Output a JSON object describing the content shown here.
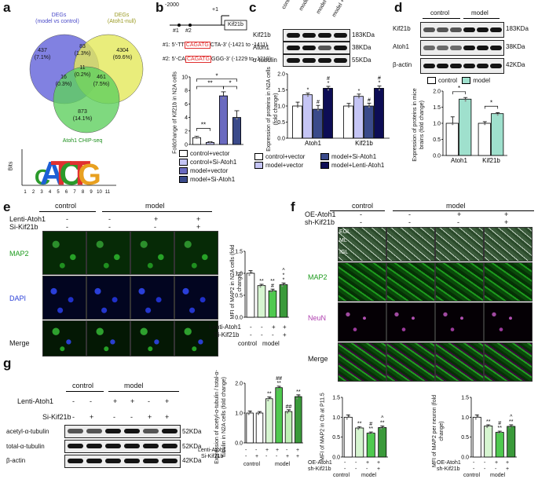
{
  "panel_letters": [
    "a",
    "b",
    "c",
    "d",
    "e",
    "f",
    "g"
  ],
  "colors": {
    "venn_blue": "#6b6bdc",
    "venn_yellow": "#e4e85a",
    "venn_green": "#5fcf5f",
    "white": "#ffffff",
    "lavender": "#c5c5f5",
    "slate": "#3a4a8a",
    "navy": "#0d0d55",
    "teal": "#9fe0cd",
    "light_green": "#d6f5d0",
    "mid_green": "#4fc94f",
    "dark_green": "#3aa83a",
    "red_box": "#e03030"
  },
  "a": {
    "deg1_title": "DEGs",
    "deg1_sub": "(model vs control)",
    "deg2_title": "DEGs",
    "deg2_sub": "(Atoh1-null)",
    "chip_label": "Atoh1 CHIP-seq",
    "regions": [
      {
        "n": "437",
        "p": "(7.1%)"
      },
      {
        "n": "83",
        "p": "(1.3%)"
      },
      {
        "n": "4304",
        "p": "(69.6%)"
      },
      {
        "n": "11",
        "p": "(0.2%)"
      },
      {
        "n": "16",
        "p": "(0.3%)"
      },
      {
        "n": "461",
        "p": "(7.5%)"
      },
      {
        "n": "873",
        "p": "(14.1%)"
      }
    ],
    "logo_ylabel": "Bits",
    "logo_letters": [
      "C",
      "A",
      "T",
      "C",
      "T",
      "G"
    ],
    "logo_ticks": [
      "1",
      "2",
      "3",
      "4",
      "5",
      "6",
      "7",
      "8",
      "9",
      "10",
      "11"
    ]
  },
  "b": {
    "pos_start": "-2000",
    "pos_tss": "+1",
    "site1": "#1",
    "site2": "#2",
    "gene": "Kif21b",
    "seq1_pre": "#1: 5'-TT",
    "seq1_box": "CAGATG",
    "seq1_post": "CTA-3' (-1421 to -1411)",
    "seq2_pre": "#2: 5'-CA",
    "seq2_box": "CAGATG",
    "seq2_post": "GGG-3' (-1229 to -1219)",
    "ylabel": "Foldchange of Kif21b in N2A cells",
    "sig": [
      "**",
      "**",
      "*",
      "*"
    ],
    "legend": [
      "control+vector",
      "control+Si-Atoh1",
      "model+vector",
      "model+Si-Atoh1"
    ]
  },
  "c": {
    "lanes": [
      "control +NC",
      "model +NC",
      "model +Si-Atoh1",
      "model +Lenti-Atoh1"
    ],
    "rows": [
      "Kif21b",
      "Atoh1",
      "α-tubulin"
    ],
    "kda": [
      "183KDa",
      "38KDa",
      "55KDa"
    ],
    "ylabel": "Expression of proteins in N2A cells (fold change)",
    "groups": [
      "Atoh1",
      "Kif21b"
    ],
    "bar_sig": [
      "",
      "*",
      "#",
      "#\n*",
      "",
      "*",
      "#",
      "#\n*"
    ],
    "legend": [
      "control+vector",
      "model+Si-Atoh1",
      "model+vector",
      "model+Lenti-Atoh1"
    ]
  },
  "d": {
    "groups": [
      "control",
      "model"
    ],
    "rows": [
      "Kif21b",
      "Atoh1",
      "β-actin"
    ],
    "kda": [
      "183KDa",
      "38KDa",
      "42KDa"
    ],
    "legend": [
      "control",
      "model"
    ],
    "ylabel": "Expression of proteins in mice brains (fold change)",
    "xcats": [
      "Atoh1",
      "Kif21b"
    ],
    "sig": [
      "*",
      "*"
    ]
  },
  "e": {
    "groups": [
      "control",
      "model"
    ],
    "row1_label": "Lenti-Atoh1",
    "row1": [
      "-",
      "-",
      "+",
      "+"
    ],
    "row2_label": "Si-Kif21b",
    "row2": [
      "-",
      "-",
      "-",
      "+"
    ],
    "rows": [
      "MAP2",
      "DAPI",
      "Merge"
    ],
    "ylabel": "MFI of MAP2 in N2A cells (fold change)",
    "sig": [
      "",
      "**",
      "**\n#",
      "^\n*\n*"
    ],
    "cond_row1_label": "Lenti-Atoh1",
    "cond_row1": [
      "-",
      "-",
      "+",
      "+"
    ],
    "cond_row2_label": "Si-Kif21b",
    "cond_row2": [
      "-",
      "-",
      "-",
      "+"
    ],
    "xgroups": [
      "control",
      "model"
    ]
  },
  "f": {
    "groups": [
      "control",
      "model"
    ],
    "row1_label": "OE-Atoh1",
    "row1": [
      "-",
      "-",
      "+",
      "+"
    ],
    "row2_label": "sh-Kif21b",
    "row2": [
      "-",
      "-",
      "-",
      "+"
    ],
    "rows": [
      "MAP2",
      "NeuN",
      "Merge"
    ],
    "layer_labels": [
      "EGL",
      "ML",
      "IGL"
    ],
    "chart1_ylabel": "MFI of MAP2 in Cb at P11.5",
    "chart2_ylabel": "MFI of MAP2 per neuron (fold change)",
    "sig1": [
      "",
      "**",
      "#\n**",
      "^\n**"
    ],
    "sig2": [
      "",
      "**",
      "#\n**",
      "^\n**"
    ],
    "cond_row1_label": "OE-Atoh1",
    "cond_row1": [
      "-",
      "-",
      "+",
      "+"
    ],
    "cond_row2_label": "sh-Kif21b",
    "cond_row2": [
      "-",
      "-",
      "-",
      "+"
    ],
    "xgroups": [
      "control",
      "model"
    ]
  },
  "g": {
    "groups": [
      "control",
      "model"
    ],
    "row1_label": "Lenti-Atoh1",
    "row1": [
      "-",
      "-",
      "+",
      "+",
      "-",
      "+"
    ],
    "row2_label": "Si-Kif21b",
    "row2": [
      "-",
      "+",
      "-",
      "-",
      "+",
      "+"
    ],
    "rows": [
      "acetyl-α-tubulin",
      "total-α-tubulin",
      "β-actin"
    ],
    "kda": [
      "52KDa",
      "52KDa",
      "42KDa"
    ],
    "ylabel": "Expression of acetyl-α-tubulin / total-α-tubulin in N2A cells (fold change)",
    "sig": [
      "",
      "",
      "**",
      "##\n**",
      "##",
      "**"
    ],
    "cond_row1_label": "Lenti-Atoh1",
    "cond_row1": [
      "-",
      "-",
      "+",
      "+",
      "-",
      "+"
    ],
    "cond_row2_label": "Si-Kif21b",
    "cond_row2": [
      "-",
      "+",
      "-",
      "-",
      "+",
      "+"
    ],
    "xgroups": [
      "control",
      "model"
    ]
  },
  "chart_data": [
    {
      "id": "b",
      "type": "bar",
      "categories": [
        "control+vector",
        "control+Si-Atoh1",
        "model+vector",
        "model+Si-Atoh1"
      ],
      "values": [
        1.0,
        0.3,
        7.2,
        4.0
      ],
      "errors": [
        0.2,
        0.1,
        0.6,
        1.0
      ],
      "ylim": [
        0,
        10
      ],
      "yticks": [
        "0",
        "2",
        "4",
        "6",
        "8",
        "10"
      ],
      "ylabel": "Foldchange of Kif21b in N2A cells",
      "fills": [
        "#ffffff",
        "#c5c5f5",
        "#6a6ac0",
        "#3a4a8a"
      ]
    },
    {
      "id": "c",
      "type": "bar",
      "categories": [
        "Atoh1",
        "Kif21b"
      ],
      "series": [
        {
          "name": "control+vector",
          "values": [
            1.0,
            1.0
          ],
          "fill": "#ffffff"
        },
        {
          "name": "model+vector",
          "values": [
            1.35,
            1.3
          ],
          "fill": "#c5c5f5"
        },
        {
          "name": "model+Si-Atoh1",
          "values": [
            0.9,
            1.0
          ],
          "fill": "#3a4a8a"
        },
        {
          "name": "model+Lenti-Atoh1",
          "values": [
            1.55,
            1.55
          ],
          "fill": "#0d0d55"
        }
      ],
      "errors": [
        [
          0.12,
          0.08
        ],
        [
          0.05,
          0.07
        ],
        [
          0.12,
          0.09
        ],
        [
          0.06,
          0.07
        ]
      ],
      "ylim": [
        0,
        2.0
      ],
      "yticks": [
        "0.0",
        "0.5",
        "1.0",
        "1.5",
        "2.0"
      ],
      "ylabel": "Expression of proteins in N2A cells (fold change)"
    },
    {
      "id": "d",
      "type": "bar",
      "categories": [
        "Atoh1",
        "Kif21b"
      ],
      "series": [
        {
          "name": "control",
          "values": [
            1.0,
            1.0
          ],
          "fill": "#ffffff"
        },
        {
          "name": "model",
          "values": [
            1.75,
            1.3
          ],
          "fill": "#9fe0cd"
        }
      ],
      "errors": [
        [
          0.2,
          0.05
        ],
        [
          0.05,
          0.03
        ]
      ],
      "ylim": [
        0,
        2.0
      ],
      "yticks": [
        "0.0",
        "0.5",
        "1.0",
        "1.5",
        "2.0"
      ],
      "ylabel": "Expression of proteins in mice brains (fold change)"
    },
    {
      "id": "e",
      "type": "bar",
      "categories": [
        "control",
        "model",
        "model+Lenti-Atoh1",
        "model+Lenti-Atoh1+Si-Kif21b"
      ],
      "values": [
        1.0,
        0.72,
        0.6,
        0.74
      ],
      "errors": [
        0.06,
        0.03,
        0.04,
        0.04
      ],
      "ylim": [
        0,
        1.5
      ],
      "yticks": [
        "0.0",
        "0.5",
        "1.0",
        "1.5"
      ],
      "ylabel": "MFI of MAP2 in N2A cells (fold change)",
      "fills": [
        "#ffffff",
        "#d6f5d0",
        "#4fc94f",
        "#3a9a3a"
      ]
    },
    {
      "id": "f1",
      "type": "bar",
      "categories": [
        "control",
        "model",
        "model+OE-Atoh1",
        "model+OE-Atoh1+sh-Kif21b"
      ],
      "values": [
        1.0,
        0.73,
        0.6,
        0.74
      ],
      "errors": [
        0.06,
        0.03,
        0.03,
        0.04
      ],
      "ylim": [
        0,
        1.5
      ],
      "yticks": [
        "0.0",
        "0.5",
        "1.0",
        "1.5"
      ],
      "ylabel": "MFI of MAP2 in Cb at P11.5",
      "fills": [
        "#ffffff",
        "#d6f5d0",
        "#4fc94f",
        "#3a9a3a"
      ]
    },
    {
      "id": "f2",
      "type": "bar",
      "categories": [
        "control",
        "model",
        "model+OE-Atoh1",
        "model+OE-Atoh1+sh-Kif21b"
      ],
      "values": [
        1.0,
        0.78,
        0.62,
        0.77
      ],
      "errors": [
        0.06,
        0.03,
        0.03,
        0.04
      ],
      "ylim": [
        0,
        1.5
      ],
      "yticks": [
        "0.0",
        "0.5",
        "1.0",
        "1.5"
      ],
      "ylabel": "MFI of MAP2 per neuron (fold change)",
      "fills": [
        "#ffffff",
        "#d6f5d0",
        "#4fc94f",
        "#3a9a3a"
      ]
    },
    {
      "id": "g",
      "type": "bar",
      "categories": [
        "control",
        "control+Si-Kif21b",
        "model",
        "model+Lenti-Atoh1",
        "model+Si-Kif21b",
        "model+Lenti-Atoh1+Si-Kif21b"
      ],
      "values": [
        1.0,
        1.0,
        1.48,
        1.85,
        1.05,
        1.55
      ],
      "errors": [
        0.07,
        0.05,
        0.06,
        0.05,
        0.06,
        0.06
      ],
      "ylim": [
        0,
        2.0
      ],
      "yticks": [
        "0.0",
        "1.0",
        "2.0"
      ],
      "ylabel": "Expression of acetyl-α-tubulin / total-α-tubulin in N2A cells (fold change)",
      "fills": [
        "#ffffff",
        "#ffffff",
        "#d6f5d0",
        "#4fc94f",
        "#bff0b5",
        "#3a9a3a"
      ]
    }
  ]
}
